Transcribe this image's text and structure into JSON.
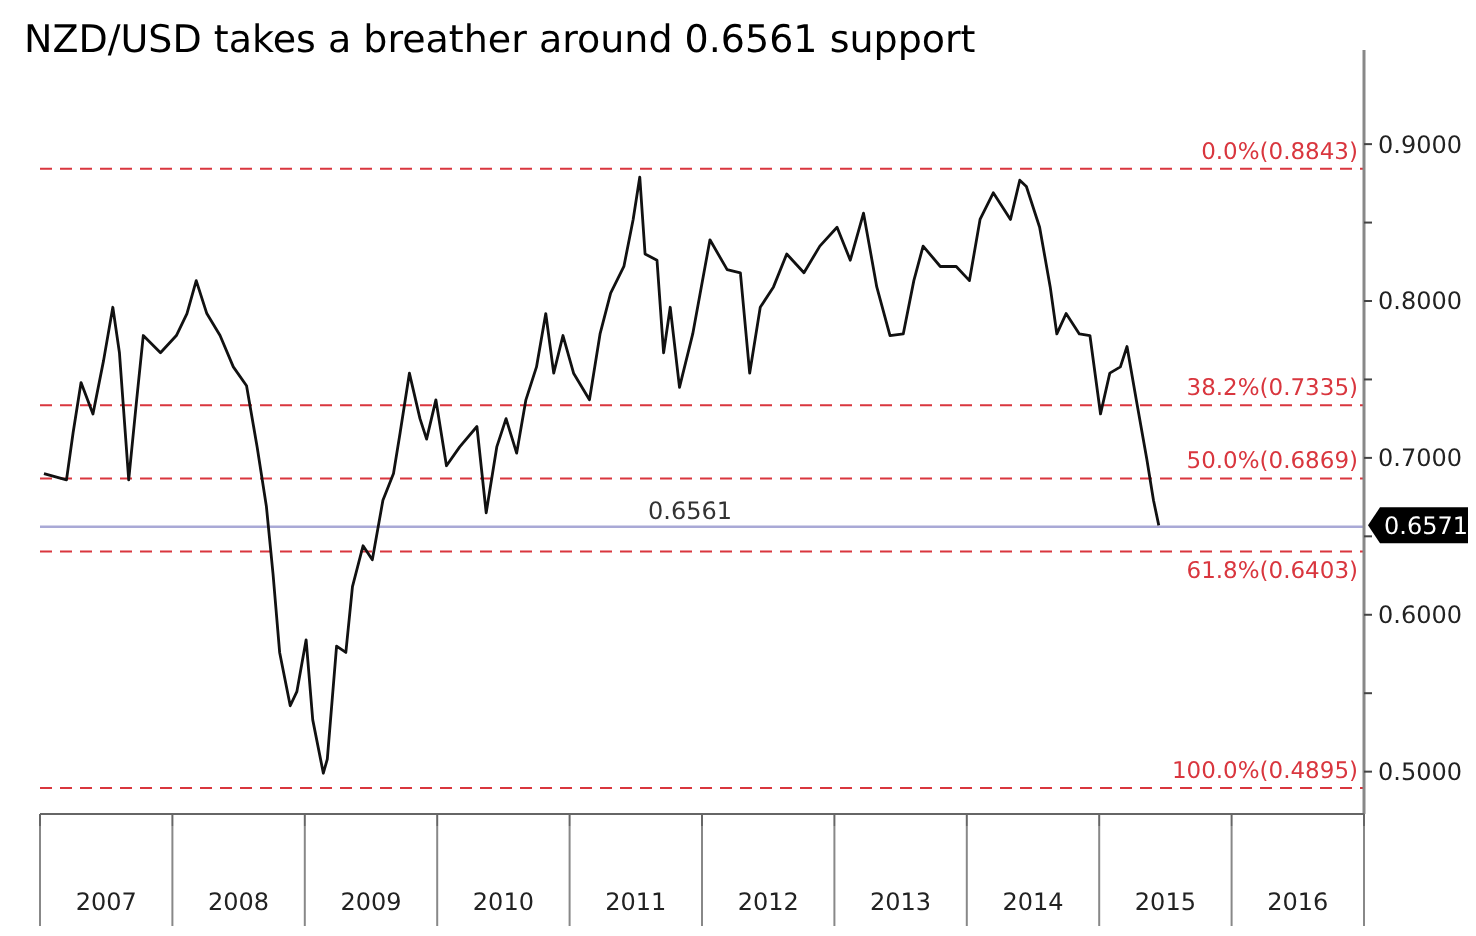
{
  "chart_data": {
    "type": "line",
    "title": "NZD/USD takes a breather around 0.6561 support",
    "series": [
      {
        "color": "#111111",
        "x": [
          2007.03,
          2007.2,
          2007.25,
          2007.31,
          2007.4,
          2007.48,
          2007.55,
          2007.6,
          2007.67,
          2007.73,
          2007.78,
          2007.91,
          2008.03,
          2008.11,
          2008.18,
          2008.26,
          2008.36,
          2008.46,
          2008.56,
          2008.64,
          2008.71,
          2008.76,
          2008.81,
          2008.89,
          2008.94,
          2009.01,
          2009.06,
          2009.14,
          2009.17,
          2009.24,
          2009.31,
          2009.36,
          2009.44,
          2009.51,
          2009.59,
          2009.67,
          2009.72,
          2009.79,
          2009.87,
          2009.92,
          2009.99,
          2010.07,
          2010.17,
          2010.3,
          2010.37,
          2010.45,
          2010.52,
          2010.6,
          2010.67,
          2010.75,
          2010.82,
          2010.88,
          2010.95,
          2011.03,
          2011.15,
          2011.23,
          2011.31,
          2011.41,
          2011.48,
          2011.53,
          2011.57,
          2011.66,
          2011.71,
          2011.76,
          2011.83,
          2011.93,
          2012.06,
          2012.19,
          2012.29,
          2012.36,
          2012.44,
          2012.54,
          2012.64,
          2012.77,
          2012.89,
          2013.02,
          2013.12,
          2013.22,
          2013.32,
          2013.42,
          2013.52,
          2013.6,
          2013.67,
          2013.8,
          2013.92,
          2014.02,
          2014.1,
          2014.2,
          2014.33,
          2014.4,
          2014.45,
          2014.55,
          2014.63,
          2014.68,
          2014.75,
          2014.85,
          2014.93,
          2015.01,
          2015.08,
          2015.16,
          2015.21,
          2015.28,
          2015.36,
          2015.41,
          2015.45
        ],
        "values": [
          0.69,
          0.686,
          0.716,
          0.748,
          0.728,
          0.762,
          0.796,
          0.767,
          0.686,
          0.737,
          0.778,
          0.767,
          0.778,
          0.792,
          0.813,
          0.792,
          0.778,
          0.758,
          0.746,
          0.707,
          0.669,
          0.626,
          0.576,
          0.542,
          0.551,
          0.584,
          0.533,
          0.499,
          0.508,
          0.58,
          0.576,
          0.618,
          0.644,
          0.635,
          0.673,
          0.69,
          0.716,
          0.754,
          0.725,
          0.712,
          0.737,
          0.695,
          0.707,
          0.72,
          0.665,
          0.707,
          0.725,
          0.703,
          0.737,
          0.758,
          0.792,
          0.754,
          0.778,
          0.754,
          0.737,
          0.779,
          0.805,
          0.822,
          0.852,
          0.879,
          0.83,
          0.826,
          0.767,
          0.796,
          0.745,
          0.779,
          0.839,
          0.82,
          0.818,
          0.754,
          0.796,
          0.809,
          0.83,
          0.818,
          0.835,
          0.847,
          0.826,
          0.856,
          0.809,
          0.778,
          0.779,
          0.813,
          0.835,
          0.822,
          0.822,
          0.813,
          0.852,
          0.869,
          0.852,
          0.877,
          0.873,
          0.847,
          0.809,
          0.779,
          0.792,
          0.779,
          0.778,
          0.728,
          0.754,
          0.758,
          0.771,
          0.737,
          0.699,
          0.673,
          0.657
        ]
      }
    ],
    "xlim": [
      2007,
      2017
    ],
    "xticks": [
      {
        "value": 2007,
        "label": null
      },
      {
        "value": 2007.5,
        "label": "2007"
      },
      {
        "value": 2008,
        "label": null
      },
      {
        "value": 2008.5,
        "label": "2008"
      },
      {
        "value": 2009,
        "label": null
      },
      {
        "value": 2009.5,
        "label": "2009"
      },
      {
        "value": 2010,
        "label": null
      },
      {
        "value": 2010.5,
        "label": "2010"
      },
      {
        "value": 2011,
        "label": null
      },
      {
        "value": 2011.5,
        "label": "2011"
      },
      {
        "value": 2012,
        "label": null
      },
      {
        "value": 2012.5,
        "label": "2012"
      },
      {
        "value": 2013,
        "label": null
      },
      {
        "value": 2013.5,
        "label": "2013"
      },
      {
        "value": 2014,
        "label": null
      },
      {
        "value": 2014.5,
        "label": "2014"
      },
      {
        "value": 2015,
        "label": null
      },
      {
        "value": 2015.5,
        "label": "2015"
      },
      {
        "value": 2016,
        "label": null
      },
      {
        "value": 2016.5,
        "label": "2016"
      },
      {
        "value": 2017,
        "label": null
      }
    ],
    "ylim": [
      0.473,
      0.96
    ],
    "yticks": [
      {
        "value": 0.5,
        "label": "0.5000"
      },
      {
        "value": 0.55,
        "label": null
      },
      {
        "value": 0.6,
        "label": "0.6000"
      },
      {
        "value": 0.65,
        "label": null
      },
      {
        "value": 0.7,
        "label": "0.7000"
      },
      {
        "value": 0.75,
        "label": null
      },
      {
        "value": 0.8,
        "label": "0.8000"
      },
      {
        "value": 0.85,
        "label": null
      },
      {
        "value": 0.9,
        "label": "0.9000"
      }
    ],
    "ref_lines": [
      {
        "axis": "y",
        "value": 0.8843,
        "label": "0.0%(0.8843)",
        "color": "#d9363e",
        "line_style": "dashed"
      },
      {
        "axis": "y",
        "value": 0.7335,
        "label": "38.2%(0.7335)",
        "color": "#d9363e",
        "line_style": "dashed"
      },
      {
        "axis": "y",
        "value": 0.6869,
        "label": "50.0%(0.6869)",
        "color": "#d9363e",
        "line_style": "dashed"
      },
      {
        "axis": "y",
        "value": 0.6403,
        "label": "61.8%(0.6403)",
        "color": "#d9363e",
        "line_style": "dashed"
      },
      {
        "axis": "y",
        "value": 0.4895,
        "label": "100.0%(0.4895)",
        "color": "#d9363e",
        "line_style": "dashed"
      },
      {
        "axis": "y",
        "value": 0.6561,
        "label": "0.6561",
        "color": "#a9a9d6",
        "line_style": "solid"
      }
    ],
    "annotations": [
      "0.6571"
    ],
    "grid": false,
    "line_style": "solid",
    "marker": "none"
  }
}
